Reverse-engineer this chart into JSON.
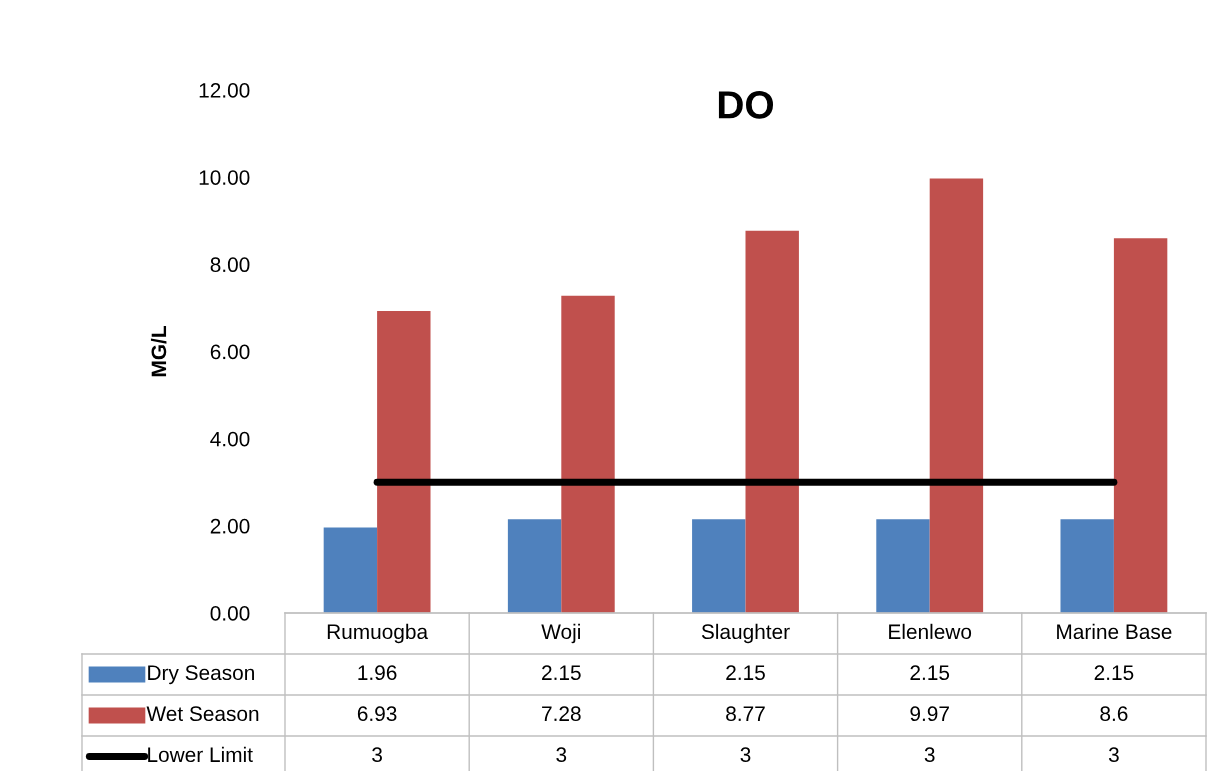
{
  "chart_data": {
    "type": "bar",
    "title": "DO",
    "ylabel": "MG/L",
    "categories": [
      "Rumuogba",
      "Woji",
      "Slaughter",
      "Elenlewo",
      "Marine Base"
    ],
    "series": [
      {
        "name": "Dry Season",
        "color": "#4f81bd",
        "values": [
          1.96,
          2.15,
          2.15,
          2.15,
          2.15
        ]
      },
      {
        "name": "Wet Season",
        "color": "#c0504d",
        "values": [
          6.93,
          7.28,
          8.77,
          9.97,
          8.6
        ]
      },
      {
        "name": "Lower Limit",
        "type": "line",
        "color": "#000000",
        "values": [
          3,
          3,
          3,
          3,
          3
        ]
      }
    ],
    "ylim": [
      0,
      12
    ],
    "yticks": [
      {
        "value": 0,
        "label": "0.00"
      },
      {
        "value": 2,
        "label": "2.00"
      },
      {
        "value": 4,
        "label": "4.00"
      },
      {
        "value": 6,
        "label": "6.00"
      },
      {
        "value": 8,
        "label": "8.00"
      },
      {
        "value": 10,
        "label": "10.00"
      },
      {
        "value": 12,
        "label": "12.00"
      }
    ],
    "data_labels": true,
    "legend": "bottom left"
  }
}
